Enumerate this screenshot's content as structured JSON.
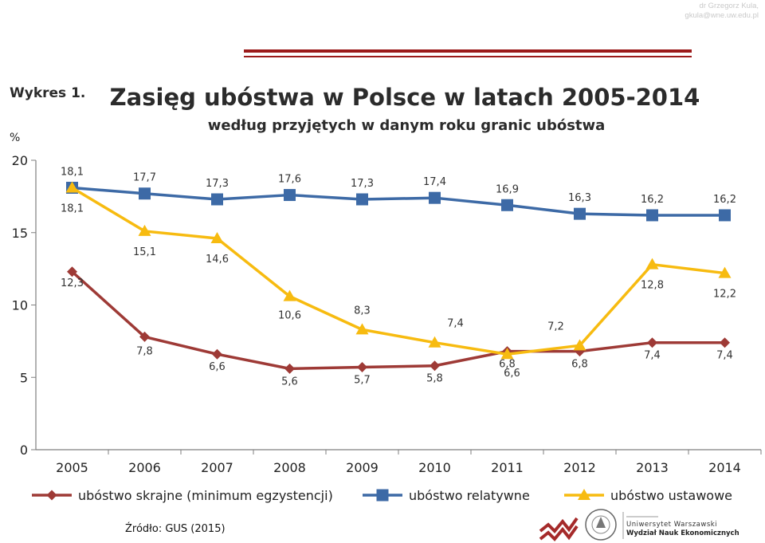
{
  "author": {
    "name": "dr Grzegorz Kula,",
    "email": "gkula@wne.uw.edu.pl"
  },
  "chart_data": {
    "type": "line",
    "label_prefix": "Wykres 1.",
    "title": "Zasięg ubóstwa w Polsce w latach 2005-2014",
    "subtitle": "według przyjętych w danym roku granic ubóstwa",
    "ylabel": "%",
    "ylim": [
      0,
      20
    ],
    "yticks": [
      0,
      5,
      10,
      15,
      20
    ],
    "categories": [
      "2005",
      "2006",
      "2007",
      "2008",
      "2009",
      "2010",
      "2011",
      "2012",
      "2013",
      "2014"
    ],
    "series": [
      {
        "name": "ubóstwo skrajne (minimum egzystencji)",
        "color": "#9e3a36",
        "marker": "diamond",
        "values": [
          12.3,
          7.8,
          6.6,
          5.6,
          5.7,
          5.8,
          6.8,
          6.8,
          7.4,
          7.4
        ],
        "labels": [
          "12,3",
          "7,8",
          "6,6",
          "5,6",
          "5,7",
          "5,8",
          "6,8",
          "6,8",
          "7,4",
          "7,4"
        ]
      },
      {
        "name": "ubóstwo relatywne",
        "color": "#3d6aa6",
        "marker": "square",
        "values": [
          18.1,
          17.7,
          17.3,
          17.6,
          17.3,
          17.4,
          16.9,
          16.3,
          16.2,
          16.2
        ],
        "labels": [
          "18,1",
          "17,7",
          "17,3",
          "17,6",
          "17,3",
          "17,4",
          "16,9",
          "16,3",
          "16,2",
          "16,2"
        ]
      },
      {
        "name": "ubóstwo ustawowe",
        "color": "#f7bb10",
        "marker": "triangle",
        "values": [
          18.1,
          15.1,
          14.6,
          10.6,
          8.3,
          7.4,
          6.6,
          7.2,
          12.8,
          12.2
        ],
        "labels": [
          "18,1",
          "15,1",
          "14,6",
          "10,6",
          "8,3",
          "7,4",
          "6,6",
          "7,2",
          "12,8",
          "12,2"
        ]
      }
    ],
    "legend": "bottom",
    "grid": false
  },
  "source": "Źródło: GUS (2015)",
  "logo": {
    "university": "Uniwersytet Warszawski",
    "faculty": "Wydział Nauk Ekonomicznych"
  }
}
